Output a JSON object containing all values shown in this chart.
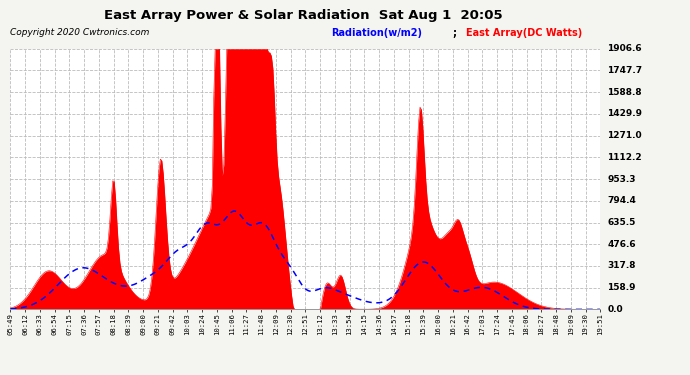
{
  "title": "East Array Power & Solar Radiation  Sat Aug 1  20:05",
  "copyright": "Copyright 2020 Cwtronics.com",
  "legend_radiation": "Radiation(w/m2)",
  "legend_east": "East Array(DC Watts)",
  "yticks": [
    0.0,
    158.9,
    317.8,
    476.6,
    635.5,
    794.4,
    953.3,
    1112.2,
    1271.0,
    1429.9,
    1588.8,
    1747.7,
    1906.6
  ],
  "ymax": 1906.6,
  "background_color": "#f4f4f0",
  "plot_bg_color": "#ffffff",
  "grid_color": "#bbbbbb",
  "radiation_color": "#0000ff",
  "east_array_color": "#ff0000",
  "title_color": "#000000",
  "copyright_color": "#000000",
  "xtick_labels": [
    "05:49",
    "06:12",
    "06:33",
    "06:54",
    "07:15",
    "07:36",
    "07:57",
    "08:18",
    "08:39",
    "09:00",
    "09:21",
    "09:42",
    "10:03",
    "10:24",
    "10:45",
    "11:06",
    "11:27",
    "11:48",
    "12:09",
    "12:30",
    "12:51",
    "13:12",
    "13:33",
    "13:54",
    "14:15",
    "14:36",
    "14:57",
    "15:18",
    "15:39",
    "16:00",
    "16:21",
    "16:42",
    "17:03",
    "17:24",
    "17:45",
    "18:06",
    "18:27",
    "18:48",
    "19:09",
    "19:30",
    "19:51"
  ],
  "n_points": 410
}
